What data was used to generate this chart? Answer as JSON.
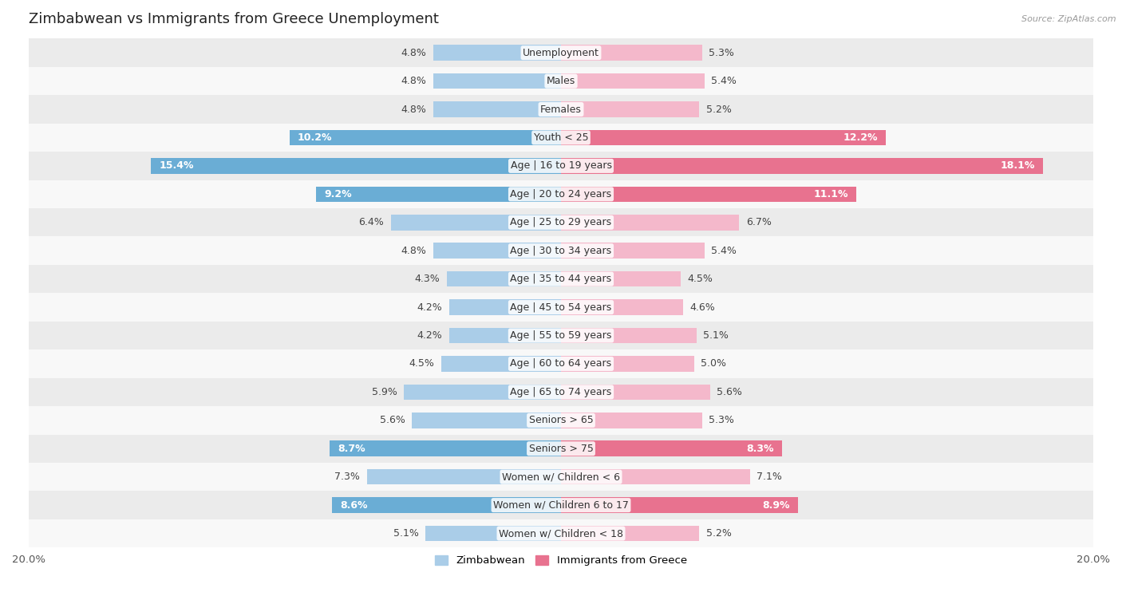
{
  "title": "Zimbabwean vs Immigrants from Greece Unemployment",
  "source": "Source: ZipAtlas.com",
  "categories": [
    "Unemployment",
    "Males",
    "Females",
    "Youth < 25",
    "Age | 16 to 19 years",
    "Age | 20 to 24 years",
    "Age | 25 to 29 years",
    "Age | 30 to 34 years",
    "Age | 35 to 44 years",
    "Age | 45 to 54 years",
    "Age | 55 to 59 years",
    "Age | 60 to 64 years",
    "Age | 65 to 74 years",
    "Seniors > 65",
    "Seniors > 75",
    "Women w/ Children < 6",
    "Women w/ Children 6 to 17",
    "Women w/ Children < 18"
  ],
  "zimbabwean": [
    4.8,
    4.8,
    4.8,
    10.2,
    15.4,
    9.2,
    6.4,
    4.8,
    4.3,
    4.2,
    4.2,
    4.5,
    5.9,
    5.6,
    8.7,
    7.3,
    8.6,
    5.1
  ],
  "greece": [
    5.3,
    5.4,
    5.2,
    12.2,
    18.1,
    11.1,
    6.7,
    5.4,
    4.5,
    4.6,
    5.1,
    5.0,
    5.6,
    5.3,
    8.3,
    7.1,
    8.9,
    5.2
  ],
  "zimbabwean_color_normal": "#aacde8",
  "zimbabwean_color_highlight": "#6aadd5",
  "greece_color_normal": "#f4b8cb",
  "greece_color_highlight": "#e8728f",
  "row_bg_odd": "#ebebeb",
  "row_bg_even": "#f8f8f8",
  "bar_height": 0.55,
  "xlim": 20.0,
  "legend_zimbabwean": "Zimbabwean",
  "legend_greece": "Immigrants from Greece",
  "value_fontsize": 9.0,
  "label_fontsize": 9.0,
  "title_fontsize": 13,
  "highlight_threshold": 8.0
}
